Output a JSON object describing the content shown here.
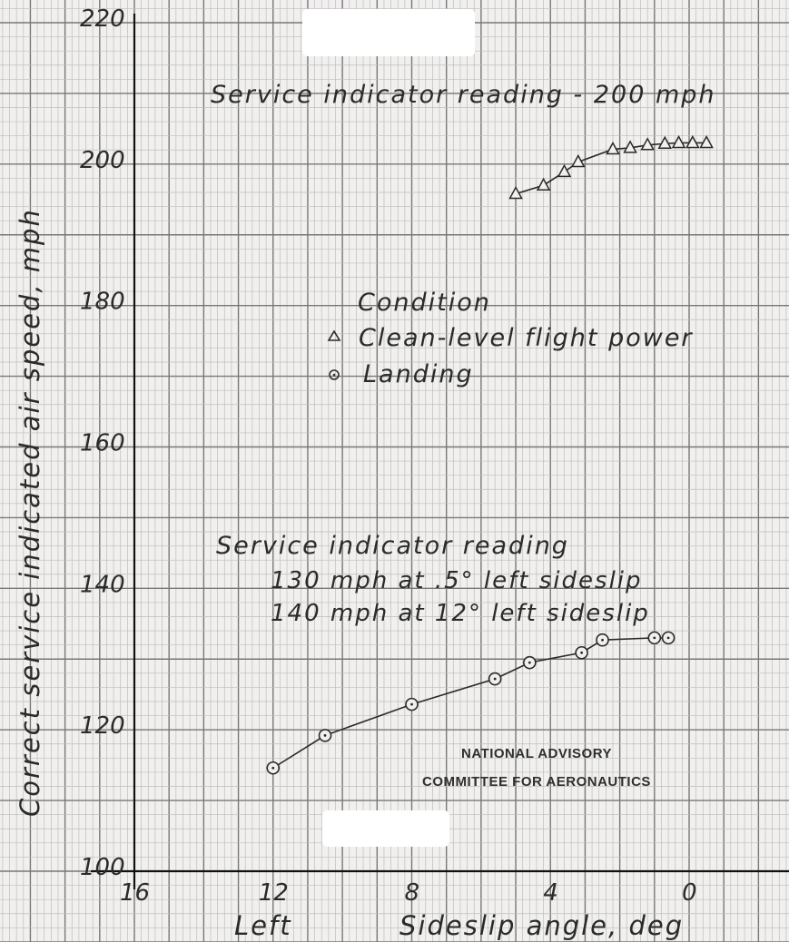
{
  "chart_data": {
    "type": "scatter",
    "xlabel": "Sideslip angle, deg",
    "xlabel_prefix": "Left",
    "ylabel": "Correct service indicated air speed, mph",
    "xlim": [
      16,
      0
    ],
    "ylim": [
      100,
      220
    ],
    "x_ticks": [
      "16",
      "12",
      "8",
      "4",
      "0"
    ],
    "y_ticks": [
      "220",
      "200",
      "180",
      "160",
      "140",
      "120",
      "100"
    ],
    "grid": true,
    "legend_title": "Condition",
    "legend_placement": "center",
    "series": [
      {
        "name": "Clean-level flight power",
        "marker": "triangle",
        "points": [
          {
            "x": 5.0,
            "y": 195.8
          },
          {
            "x": 4.2,
            "y": 197.0
          },
          {
            "x": 3.6,
            "y": 198.9
          },
          {
            "x": 3.2,
            "y": 200.3
          },
          {
            "x": 2.2,
            "y": 202.1
          },
          {
            "x": 1.7,
            "y": 202.3
          },
          {
            "x": 1.2,
            "y": 202.7
          },
          {
            "x": 0.7,
            "y": 202.9
          },
          {
            "x": 0.3,
            "y": 203.0
          },
          {
            "x": -0.1,
            "y": 203.0
          },
          {
            "x": -0.5,
            "y": 203.0
          }
        ]
      },
      {
        "name": "Landing",
        "marker": "circle",
        "points": [
          {
            "x": 12.0,
            "y": 114.6
          },
          {
            "x": 10.5,
            "y": 119.2
          },
          {
            "x": 8.0,
            "y": 123.6
          },
          {
            "x": 5.6,
            "y": 127.2
          },
          {
            "x": 4.6,
            "y": 129.5
          },
          {
            "x": 3.1,
            "y": 130.9
          },
          {
            "x": 2.5,
            "y": 132.7
          },
          {
            "x": 1.0,
            "y": 133.0
          },
          {
            "x": 0.6,
            "y": 133.0
          }
        ]
      }
    ],
    "annotations": {
      "clean": "Service indicator reading - 200 mph",
      "landing_line1": "Service indicator reading",
      "landing_line2": "130 mph at .5° left sideslip",
      "landing_line3": "140 mph at 12° left sideslip"
    },
    "stamp_line1": "NATIONAL ADVISORY",
    "stamp_line2": "COMMITTEE FOR AERONAUTICS"
  },
  "colors": {
    "paper": "#f1f0ee",
    "grid_minor": "#bdbdbd",
    "grid_major": "#777777",
    "axis": "#111111",
    "ink": "#2a2a2a",
    "blank_label": "#ffffff"
  }
}
